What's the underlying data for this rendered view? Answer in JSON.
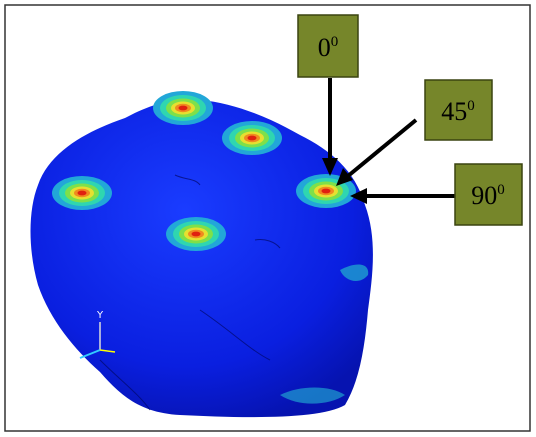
{
  "labels": [
    {
      "main": "0",
      "sup": "0"
    },
    {
      "main": "45",
      "sup": "0"
    },
    {
      "main": "90",
      "sup": "0"
    }
  ],
  "axis_label": "Y"
}
